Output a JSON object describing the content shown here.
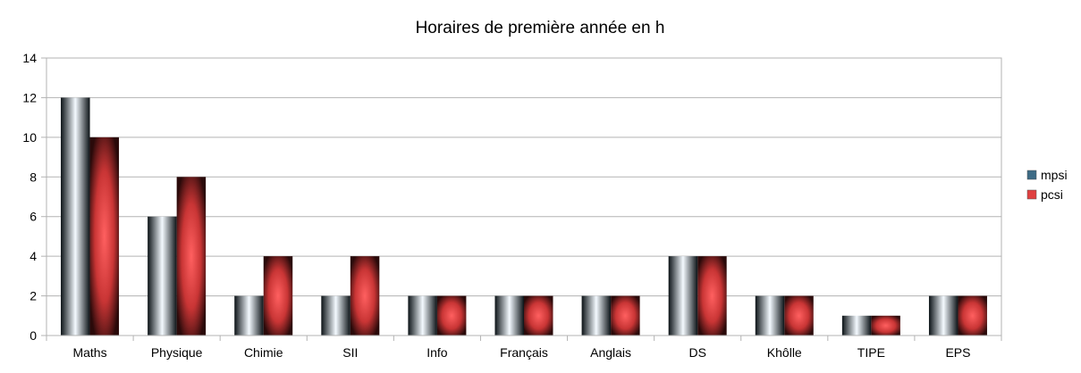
{
  "chart_data": {
    "type": "bar",
    "title": "Horaires de première année en h",
    "xlabel": "",
    "ylabel": "",
    "categories": [
      "Maths",
      "Physique",
      "Chimie",
      "SII",
      "Info",
      "Français",
      "Anglais",
      "DS",
      "Khôlle",
      "TIPE",
      "EPS"
    ],
    "series": [
      {
        "name": "mpsi",
        "values": [
          12,
          6,
          2,
          2,
          2,
          2,
          2,
          4,
          2,
          1,
          2
        ],
        "color": "#3d6b85"
      },
      {
        "name": "pcsi",
        "values": [
          10,
          8,
          4,
          4,
          2,
          2,
          2,
          4,
          2,
          1,
          2
        ],
        "color": "#e04040"
      }
    ],
    "ylim": [
      0,
      14
    ],
    "yticks": [
      "0",
      "2",
      "4",
      "6",
      "8",
      "10",
      "12",
      "14"
    ],
    "grid": true,
    "legend": "right"
  }
}
